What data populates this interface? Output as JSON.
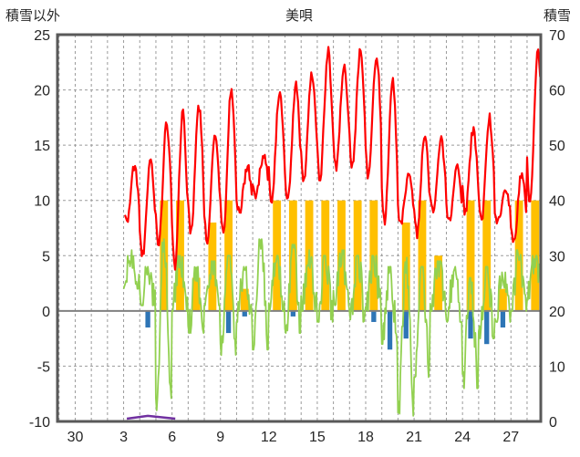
{
  "header": {
    "left_axis_title": "積雪以外",
    "title": "美唄",
    "right_axis_title": "積雪"
  },
  "chart_data": {
    "type": "line",
    "title": "美唄",
    "legend": "none",
    "grid": "dashed vertical line per day, dashed horizontal line per 5 units, solid gray zero line",
    "series_note": "red = hourly temperature-like curve (daily min/max below); green = second hourly curve (daily min/max below); orange = daytime bars 0-10; blue = negative bars below zero; purple = snow depth near 0 cm on right axis",
    "axes": {
      "left_label": "積雪以外",
      "left_min": -10,
      "left_max": 25,
      "left_ticks": [
        25,
        20,
        15,
        10,
        5,
        0,
        -5,
        -10
      ],
      "right_label": "積雪",
      "right_min": 0,
      "right_max": 70,
      "right_ticks": [
        70,
        60,
        50,
        40,
        30,
        20,
        10,
        0
      ],
      "x_min": 28.9,
      "x_max": 58.85,
      "x_note": "day-of-month axis; 30 is end of previous month, data covers days 3-28",
      "x_ticks": [
        {
          "label": "30",
          "pos": 30
        },
        {
          "label": "3",
          "pos": 33
        },
        {
          "label": "6",
          "pos": 36
        },
        {
          "label": "9",
          "pos": 39
        },
        {
          "label": "12",
          "pos": 42
        },
        {
          "label": "15",
          "pos": 45
        },
        {
          "label": "18",
          "pos": 48
        },
        {
          "label": "21",
          "pos": 51
        },
        {
          "label": "24",
          "pos": 54
        },
        {
          "label": "27",
          "pos": 57
        }
      ]
    },
    "colors": {
      "temperature_line": "#FF0000",
      "green_line": "#92D050",
      "sunshine_bars": "#FFC000",
      "precip_bars": "#2E75B6",
      "snow_line": "#7030A0",
      "grid": "#9B9B9B",
      "zero_line": "#808080",
      "frame": "#595959",
      "text": "#262626"
    },
    "daily": {
      "days": [
        3,
        4,
        5,
        6,
        7,
        8,
        9,
        10,
        11,
        12,
        13,
        14,
        15,
        16,
        17,
        18,
        19,
        20,
        21,
        22,
        23,
        24,
        25,
        26,
        27,
        28
      ],
      "temp_min": [
        8,
        5,
        6,
        4,
        7,
        6.5,
        7,
        9,
        10.5,
        10,
        10,
        12,
        12,
        13,
        13,
        12,
        8,
        8,
        7,
        9,
        8,
        9,
        8,
        8,
        6,
        10
      ],
      "temp_max": [
        13,
        14,
        17,
        18,
        18.5,
        16,
        20,
        13,
        14,
        20,
        20.5,
        21.5,
        23.5,
        22,
        23.5,
        23,
        21,
        12.5,
        16,
        15.5,
        13,
        16.5,
        17.5,
        11,
        12.5,
        23.5
      ],
      "green_min": [
        2,
        0.5,
        -9,
        0,
        -2,
        0.5,
        -4,
        -1,
        -3.5,
        0,
        -2,
        0,
        -1,
        0.5,
        -1,
        0,
        -3,
        -9.5,
        -6,
        0,
        -1,
        -7,
        -2.5,
        -1,
        0,
        1
      ],
      "green_max": [
        5.5,
        4,
        6.5,
        5,
        4,
        4.5,
        5,
        4,
        6.5,
        5,
        6,
        5.5,
        5,
        5.5,
        5,
        5,
        4,
        5,
        4,
        4.5,
        4,
        3,
        4,
        3.5,
        5.5,
        5
      ],
      "sunshine": [
        0,
        0,
        10,
        10,
        3,
        8,
        10,
        2,
        0,
        10,
        10,
        10,
        10,
        10,
        10,
        10,
        0,
        8,
        10,
        5,
        0,
        10,
        10,
        2,
        10,
        10
      ],
      "precip": [
        0,
        -1.5,
        0,
        0,
        0,
        0,
        -2,
        -0.5,
        0,
        0,
        -0.5,
        0,
        0,
        0,
        0,
        -1,
        -3.5,
        -2.5,
        0,
        0,
        0,
        -2.5,
        -3,
        -1.5,
        0,
        0
      ]
    },
    "snow_depth_points": [
      {
        "day": 3.2,
        "cm": 0.5
      },
      {
        "day": 4.5,
        "cm": 1.0
      },
      {
        "day": 6.2,
        "cm": 0.5
      }
    ]
  }
}
